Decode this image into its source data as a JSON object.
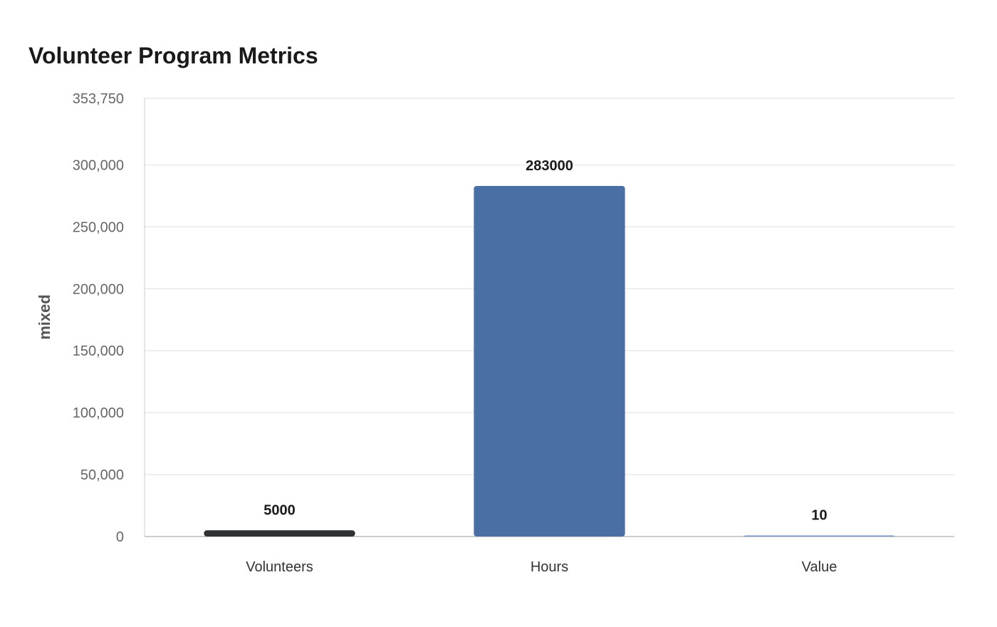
{
  "chart_data": {
    "type": "bar",
    "title": "Volunteer Program Metrics",
    "xlabel": "",
    "ylabel": "mixed",
    "categories": [
      "Volunteers",
      "Hours",
      "Value"
    ],
    "values": [
      5000,
      283000,
      10
    ],
    "value_labels": [
      "5000",
      "283000",
      "10"
    ],
    "colors": [
      "#2f3336",
      "#4a6fa5",
      "#6f93c4"
    ],
    "ylim": [
      0,
      353750
    ],
    "yticks": [
      0,
      50000,
      100000,
      150000,
      200000,
      250000,
      300000,
      353750
    ],
    "ytick_labels": [
      "0",
      "50,000",
      "100,000",
      "150,000",
      "200,000",
      "250,000",
      "300,000",
      "353,750"
    ],
    "grid": true,
    "legend": "none"
  }
}
